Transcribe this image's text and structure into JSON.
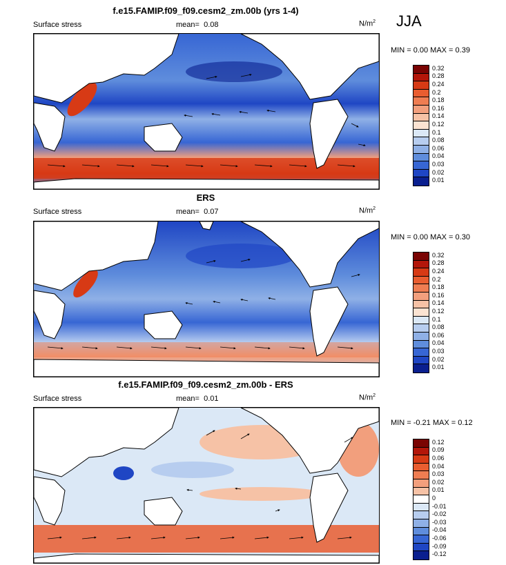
{
  "season": "JJA",
  "panels": [
    {
      "title": "f.e15.FAMIP.f09_f09.cesm2_zm.00b (yrs 1-4)",
      "left_label": "Surface stress",
      "mean_label": "mean=",
      "mean_value": "0.08",
      "units": "N/m",
      "units_exp": "2",
      "minmax": "MIN =  0.00 MAX =  0.39",
      "colorbar": [
        "0.32",
        "0.28",
        "0.24",
        "0.2",
        "0.18",
        "0.16",
        "0.14",
        "0.12",
        "0.1",
        "0.08",
        "0.06",
        "0.04",
        "0.03",
        "0.02",
        "0.01"
      ]
    },
    {
      "title": "ERS",
      "left_label": "Surface stress",
      "mean_label": "mean=",
      "mean_value": "0.07",
      "units": "N/m",
      "units_exp": "2",
      "minmax": "MIN =  0.00 MAX =  0.30",
      "colorbar": [
        "0.32",
        "0.28",
        "0.24",
        "0.2",
        "0.18",
        "0.16",
        "0.14",
        "0.12",
        "0.1",
        "0.08",
        "0.06",
        "0.04",
        "0.03",
        "0.02",
        "0.01"
      ]
    },
    {
      "title": "f.e15.FAMIP.f09_f09.cesm2_zm.00b - ERS",
      "left_label": "Surface stress",
      "mean_label": "mean=",
      "mean_value": "0.01",
      "units": "N/m",
      "units_exp": "2",
      "minmax": "MIN = -0.21 MAX =  0.12",
      "colorbar": [
        "0.12",
        "0.09",
        "0.06",
        "0.04",
        "0.03",
        "0.02",
        "0.01",
        "0",
        "-0.01",
        "-0.02",
        "-0.03",
        "-0.04",
        "-0.06",
        "-0.09",
        "-0.12"
      ]
    }
  ],
  "colors": {
    "abs_scale": [
      "#7a0403",
      "#b3160a",
      "#d73a15",
      "#e95d30",
      "#ef7d52",
      "#f29f7d",
      "#f6c2a6",
      "#fbe3d2",
      "#dbe8f6",
      "#b7cdef",
      "#8fb0e6",
      "#5f8ddc",
      "#3766d4",
      "#1f46c4",
      "#0a1f8f"
    ],
    "diff_scale": [
      "#7a0403",
      "#b3160a",
      "#d73a15",
      "#e95d30",
      "#ef7d52",
      "#f29f7d",
      "#f6c2a6",
      "#ffffff",
      "#dbe8f6",
      "#b7cdef",
      "#8fb0e6",
      "#5f8ddc",
      "#3766d4",
      "#1f46c4",
      "#0a1f8f"
    ]
  }
}
